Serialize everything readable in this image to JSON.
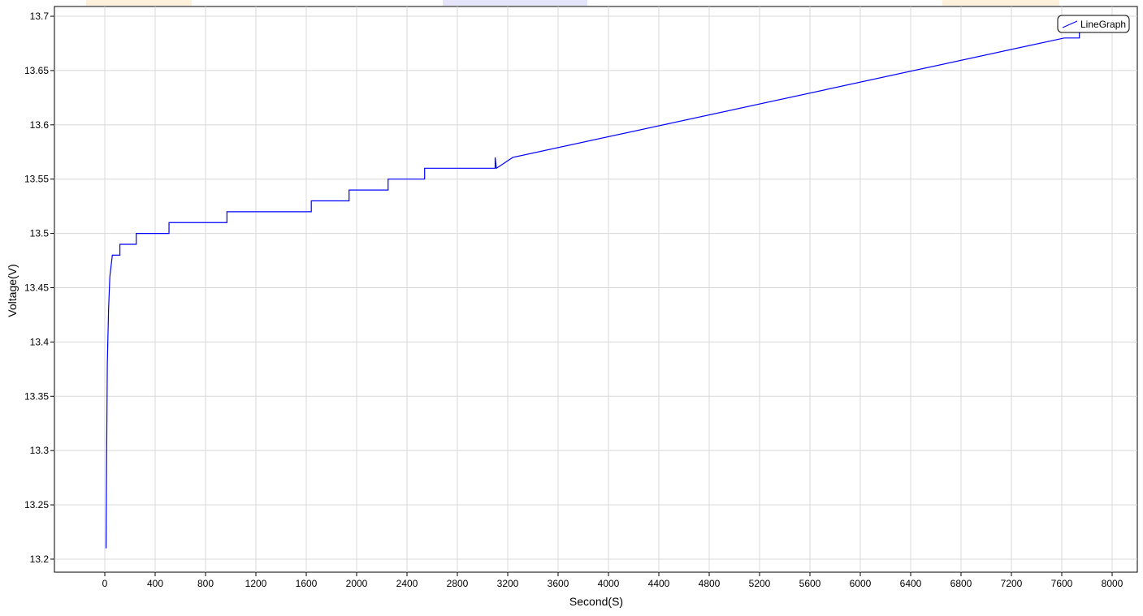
{
  "chart_data": {
    "type": "line",
    "x_label": "Second(S)",
    "y_label": "Voltage(V)",
    "x": [
      10,
      15,
      20,
      30,
      40,
      50,
      60,
      120,
      120,
      250,
      250,
      510,
      510,
      970,
      970,
      1640,
      1640,
      1940,
      1940,
      2250,
      2250,
      2540,
      2540,
      3100,
      3100,
      3110,
      3240,
      7620,
      7740,
      7740
    ],
    "series": [
      {
        "name": "LineGraph",
        "color": "#0000ff",
        "values": [
          13.21,
          13.3,
          13.38,
          13.43,
          13.46,
          13.47,
          13.48,
          13.48,
          13.49,
          13.49,
          13.5,
          13.5,
          13.51,
          13.51,
          13.52,
          13.52,
          13.53,
          13.53,
          13.54,
          13.54,
          13.55,
          13.55,
          13.56,
          13.56,
          13.57,
          13.56,
          13.57,
          13.68,
          13.68,
          13.69
        ]
      }
    ],
    "xlim": [
      -400,
      8200
    ],
    "ylim": [
      13.188,
      13.709
    ],
    "xticks": [
      0,
      400,
      800,
      1200,
      1600,
      2000,
      2400,
      2800,
      3200,
      3600,
      4000,
      4400,
      4800,
      5200,
      5600,
      6000,
      6400,
      6800,
      7200,
      7600,
      8000
    ],
    "yticks": [
      13.2,
      13.25,
      13.3,
      13.35,
      13.4,
      13.45,
      13.5,
      13.55,
      13.6,
      13.65,
      13.7
    ],
    "grid": true,
    "legend": "upper right"
  }
}
